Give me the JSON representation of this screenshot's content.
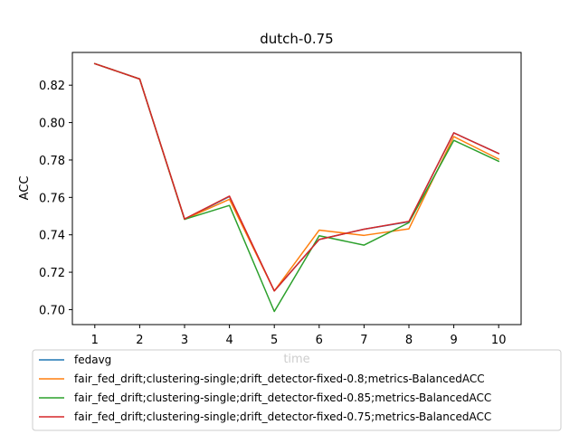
{
  "chart_data": {
    "type": "line",
    "title": "dutch-0.75",
    "xlabel": "time",
    "ylabel": "ACC",
    "x": [
      1,
      2,
      3,
      4,
      5,
      6,
      7,
      8,
      9,
      10
    ],
    "xlim": [
      0.5,
      10.5
    ],
    "ylim": [
      0.692,
      0.8375
    ],
    "yticks": [
      0.7,
      0.72,
      0.74,
      0.76,
      0.78,
      0.8,
      0.82
    ],
    "ytick_labels": [
      "0.70",
      "0.72",
      "0.74",
      "0.76",
      "0.78",
      "0.80",
      "0.82"
    ],
    "xtick_labels": [
      "1",
      "2",
      "3",
      "4",
      "5",
      "6",
      "7",
      "8",
      "9",
      "10"
    ],
    "grid": false,
    "legend_position": "bottom-left",
    "series": [
      {
        "name": "fedavg",
        "color": "#1f77b4",
        "values": [
          0.8315,
          0.8233,
          0.7483,
          0.7605,
          0.71,
          0.7375,
          0.743,
          0.747,
          0.7945,
          0.7835
        ]
      },
      {
        "name": "fair_fed_drift;clustering-single;drift_detector-fixed-0.8;metrics-BalancedACC",
        "color": "#ff7f0e",
        "values": [
          0.8315,
          0.8233,
          0.7483,
          0.759,
          0.71,
          0.7425,
          0.7397,
          0.7432,
          0.7925,
          0.7805
        ]
      },
      {
        "name": "fair_fed_drift;clustering-single;drift_detector-fixed-0.85;metrics-BalancedACC",
        "color": "#2ca02c",
        "values": [
          0.8315,
          0.8233,
          0.7483,
          0.7557,
          0.699,
          0.7395,
          0.7345,
          0.7465,
          0.7905,
          0.7793
        ]
      },
      {
        "name": "fair_fed_drift;clustering-single;drift_detector-fixed-0.75;metrics-BalancedACC",
        "color": "#d62728",
        "values": [
          0.8315,
          0.8233,
          0.7485,
          0.7607,
          0.71,
          0.7375,
          0.743,
          0.7472,
          0.7945,
          0.7835
        ]
      }
    ]
  }
}
